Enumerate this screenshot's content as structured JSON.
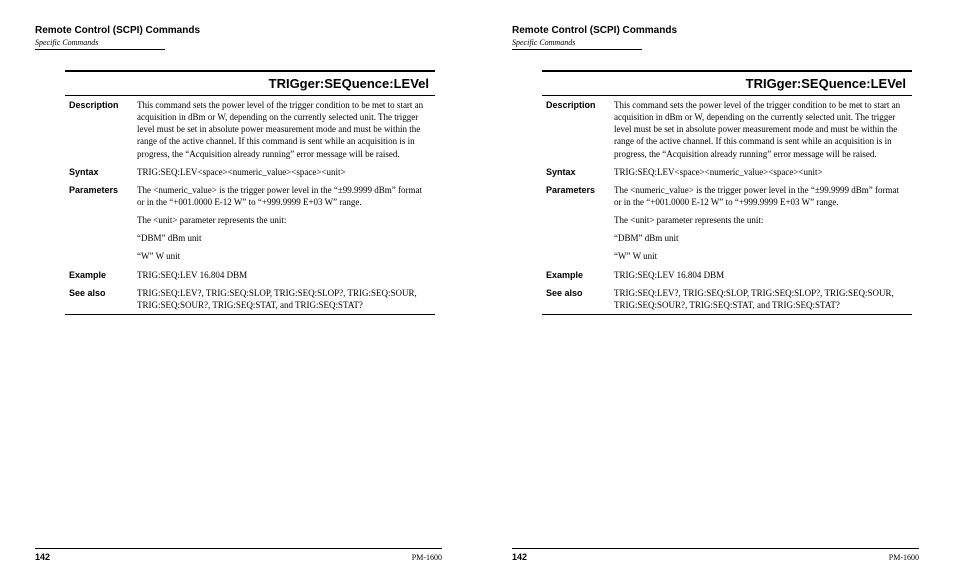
{
  "header": {
    "title": "Remote Control (SCPI) Commands",
    "subtitle": "Specific Commands"
  },
  "command": {
    "title": "TRIGger:SEQuence:LEVel",
    "rows": [
      {
        "label": "Description",
        "paras": [
          "This command sets the power level of the trigger condition to be met to start an acquisition in dBm or W, depending on the currently selected unit. The trigger level must be set in absolute power measurement mode and must be within the range of the active channel. If this command is sent while an acquisition is in progress, the “Acquisition already running” error message will be raised."
        ]
      },
      {
        "label": "Syntax",
        "paras": [
          "TRIG:SEQ:LEV<space><numeric_value><space><unit>"
        ]
      },
      {
        "label": "Parameters",
        "paras": [
          "The <numeric_value> is the trigger power level in the “±99.9999 dBm” format or in the “+001.0000 E-12 W” to “+999.9999 E+03 W” range.",
          "The <unit> parameter represents the unit:",
          "“DBM” dBm unit",
          "“W” W unit"
        ]
      },
      {
        "label": "Example",
        "paras": [
          "TRIG:SEQ:LEV 16.804 DBM"
        ]
      },
      {
        "label": "See also",
        "paras": [
          "TRIG:SEQ:LEV?, TRIG:SEQ:SLOP, TRIG:SEQ:SLOP?, TRIG:SEQ:SOUR, TRIG:SEQ:SOUR?, TRIG:SEQ:STAT, and TRIG:SEQ:STAT?"
        ]
      }
    ]
  },
  "footer": {
    "page": "142",
    "product": "PM-1600"
  }
}
